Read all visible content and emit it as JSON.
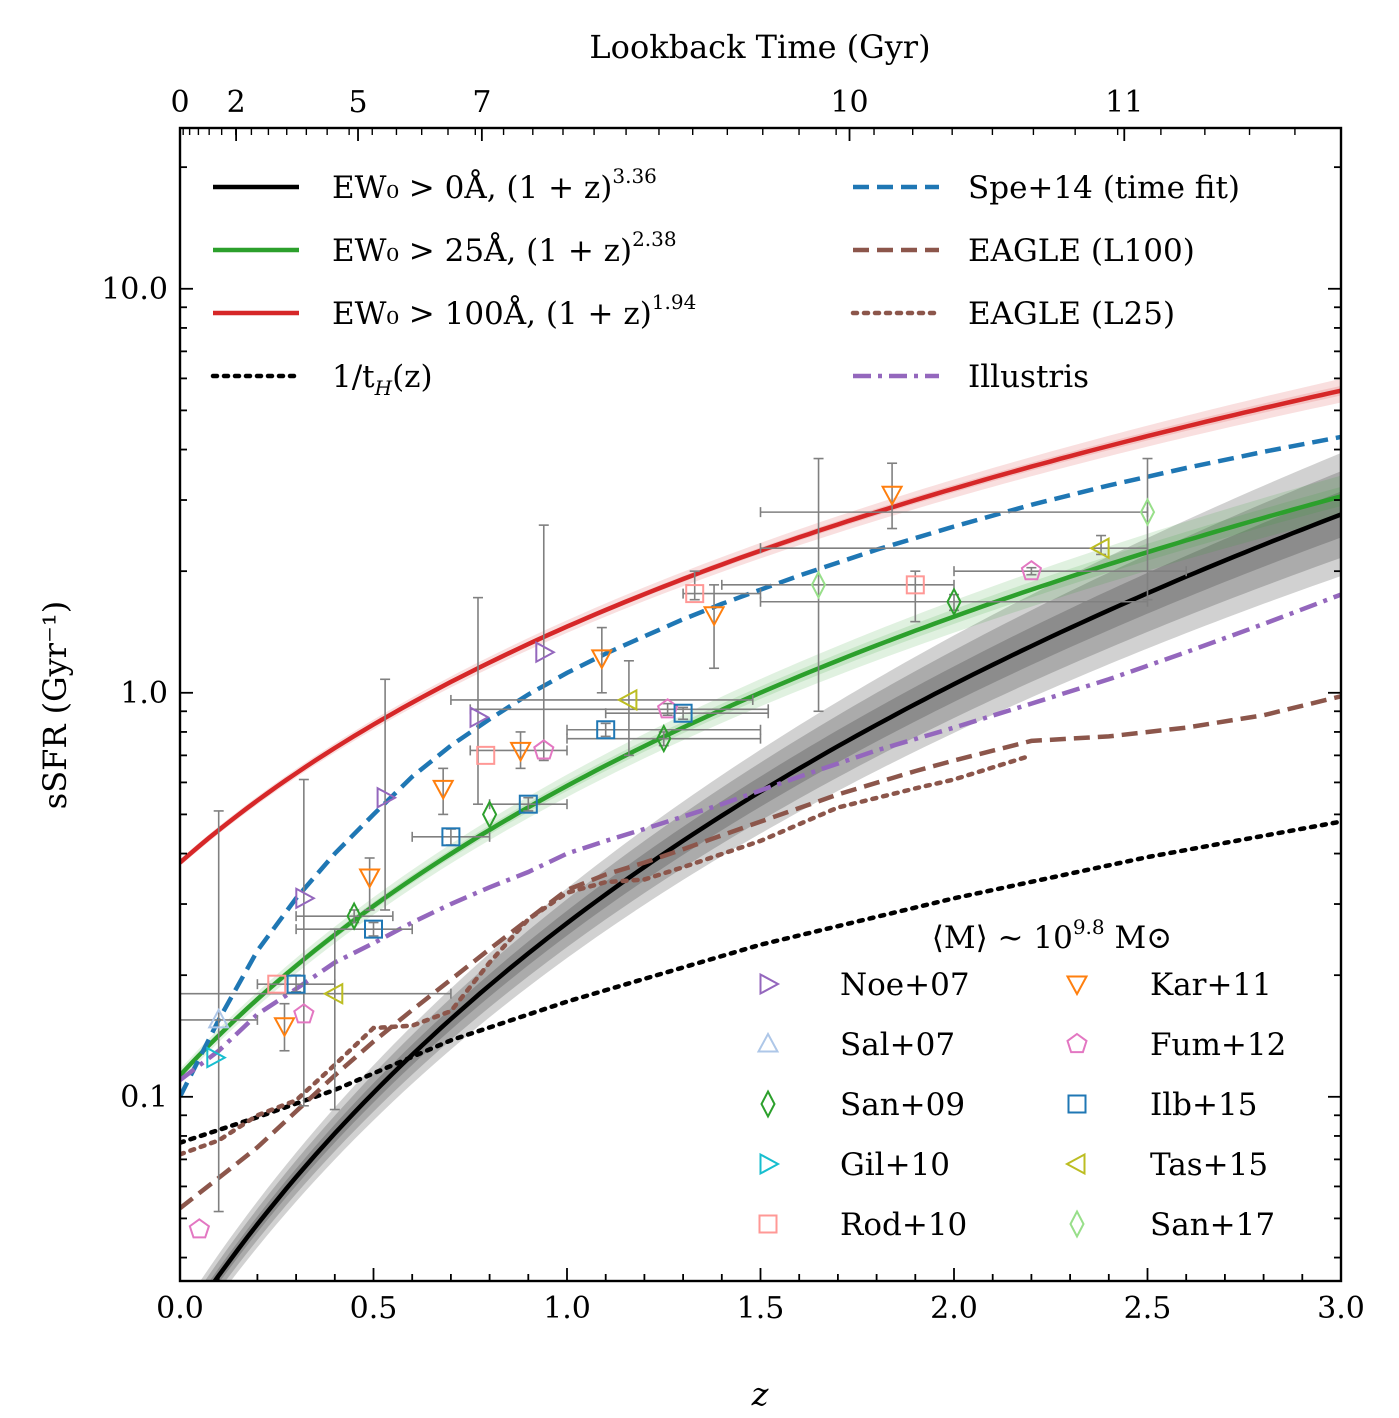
{
  "chart_data": {
    "type": "line",
    "xlabel": "z",
    "ylabel": "sSFR (Gyr⁻¹)",
    "top_axis_label": "Lookback Time (Gyr)",
    "top_ticks": [
      {
        "label": "0",
        "z": 0.0
      },
      {
        "label": "2",
        "z": 0.145
      },
      {
        "label": "5",
        "z": 0.46
      },
      {
        "label": "7",
        "z": 0.78
      },
      {
        "label": "10",
        "z": 1.73
      },
      {
        "label": "11",
        "z": 2.44
      }
    ],
    "xlim": [
      0,
      3.0
    ],
    "ylim": [
      0.035,
      25
    ],
    "yscale": "log",
    "x_ticks": [
      "0.0",
      "0.5",
      "1.0",
      "1.5",
      "2.0",
      "2.5",
      "3.0"
    ],
    "y_ticks": [
      {
        "label": "0.1",
        "value": 0.1
      },
      {
        "label": "1.0",
        "value": 1.0
      },
      {
        "label": "10.0",
        "value": 10.0
      }
    ],
    "annotation": "⟨M⟩ ~ 10",
    "annotation_exp": "9.8",
    "annotation_unit": " M⊙",
    "lines": [
      {
        "label": "EW₀ > 0Å, (1 + z)",
        "exp": "3.36",
        "color": "#000000",
        "style": "solid",
        "norm": 0.0262,
        "power": 3.36,
        "band": [
          0.1,
          0.2,
          0.3
        ]
      },
      {
        "label": "EW₀ > 25Å, (1 + z)",
        "exp": "2.38",
        "color": "#2ca02c",
        "style": "solid",
        "norm": 0.113,
        "power": 2.38,
        "band": [
          0.04,
          0.09
        ]
      },
      {
        "label": "EW₀ > 100Å, (1 + z)",
        "exp": "1.94",
        "color": "#d62728",
        "style": "solid",
        "norm": 0.38,
        "power": 1.94,
        "band": [
          0.02,
          0.05
        ]
      },
      {
        "label": "1/t",
        "sub": "H",
        "tail": "(z)",
        "color": "#000000",
        "style": "dotted",
        "x": [
          0,
          0.2,
          0.4,
          0.7,
          1.0,
          1.5,
          2.0,
          2.5,
          3.0
        ],
        "y": [
          0.077,
          0.089,
          0.104,
          0.138,
          0.172,
          0.238,
          0.31,
          0.392,
          0.48
        ]
      },
      {
        "label": "Spe+14 (time fit)",
        "color": "#1f77b4",
        "style": "dashed",
        "x": [
          0.0,
          0.1,
          0.2,
          0.3,
          0.4,
          0.5,
          0.6,
          0.7,
          0.8,
          0.9,
          1.0,
          1.1,
          1.2,
          1.3,
          1.4,
          1.5,
          1.6,
          1.8,
          2.0,
          2.2,
          2.4,
          2.6,
          2.8,
          3.0
        ],
        "y": [
          0.1,
          0.155,
          0.23,
          0.31,
          0.4,
          0.5,
          0.62,
          0.74,
          0.86,
          0.99,
          1.12,
          1.25,
          1.38,
          1.52,
          1.66,
          1.8,
          1.95,
          2.26,
          2.58,
          2.92,
          3.26,
          3.6,
          3.95,
          4.3
        ]
      },
      {
        "label": "EAGLE (L100)",
        "color": "#8c564b",
        "style": "dashed",
        "x": [
          0.0,
          0.1,
          0.2,
          0.3,
          0.4,
          0.5,
          0.6,
          0.7,
          0.8,
          0.9,
          1.0,
          1.1,
          1.2,
          1.3,
          1.5,
          1.7,
          1.9,
          2.0,
          2.2,
          2.4,
          2.6,
          2.8,
          3.0
        ],
        "y": [
          0.053,
          0.063,
          0.075,
          0.092,
          0.113,
          0.137,
          0.164,
          0.195,
          0.232,
          0.275,
          0.325,
          0.355,
          0.38,
          0.41,
          0.48,
          0.56,
          0.64,
          0.68,
          0.76,
          0.78,
          0.82,
          0.88,
          0.98
        ]
      },
      {
        "label": "EAGLE (L25)",
        "color": "#8c564b",
        "style": "dotted",
        "x": [
          0.0,
          0.1,
          0.2,
          0.3,
          0.4,
          0.5,
          0.6,
          0.7,
          0.8,
          0.9,
          1.0,
          1.1,
          1.2,
          1.3,
          1.5,
          1.7,
          1.9,
          2.0,
          2.2
        ],
        "y": [
          0.072,
          0.078,
          0.09,
          0.098,
          0.12,
          0.148,
          0.15,
          0.163,
          0.215,
          0.275,
          0.32,
          0.34,
          0.345,
          0.37,
          0.43,
          0.52,
          0.58,
          0.61,
          0.7
        ]
      },
      {
        "label": "Illustris",
        "color": "#9467bd",
        "style": "dashdot",
        "x": [
          0.0,
          0.1,
          0.2,
          0.3,
          0.4,
          0.5,
          0.6,
          0.7,
          0.8,
          0.9,
          1.0,
          1.1,
          1.2,
          1.4,
          1.6,
          1.8,
          2.0,
          2.2,
          2.4,
          2.6,
          2.8,
          3.0
        ],
        "y": [
          0.11,
          0.13,
          0.16,
          0.185,
          0.215,
          0.24,
          0.27,
          0.3,
          0.33,
          0.36,
          0.4,
          0.43,
          0.46,
          0.53,
          0.62,
          0.72,
          0.82,
          0.94,
          1.08,
          1.26,
          1.48,
          1.75
        ]
      }
    ],
    "observations": [
      {
        "label": "Noe+07",
        "marker": "tri-right",
        "color": "#9467bd",
        "points": [
          [
            0.32,
            0.31,
            0,
            0,
            0.33,
            0.33
          ],
          [
            0.53,
            0.55,
            0,
            0,
            0.57,
            0.57
          ],
          [
            0.77,
            0.87,
            0,
            0,
            0.9,
            0.9
          ],
          [
            0.94,
            1.26,
            0,
            0,
            1.3,
            1.3
          ]
        ]
      },
      {
        "label": "Sal+07",
        "marker": "tri-up",
        "color": "#aec7e8",
        "points": [
          [
            0.1,
            0.155,
            0,
            0,
            0,
            0
          ]
        ]
      },
      {
        "label": "San+09",
        "marker": "diamond",
        "color": "#2ca02c",
        "points": [
          [
            0.45,
            0.28,
            0,
            0,
            0,
            0
          ],
          [
            0.8,
            0.5,
            0,
            0,
            0,
            0
          ],
          [
            1.25,
            0.77,
            0,
            0,
            0,
            0
          ],
          [
            2.0,
            1.68,
            0,
            0,
            0,
            0
          ]
        ]
      },
      {
        "label": "Gil+10",
        "marker": "tri-right",
        "color": "#17becf",
        "points": [
          [
            0.09,
            0.125,
            0,
            0,
            0,
            0
          ]
        ]
      },
      {
        "label": "Rod+10",
        "marker": "square",
        "color": "#ff9896",
        "points": [
          [
            0.25,
            0.19,
            0,
            0,
            0,
            0
          ],
          [
            0.79,
            0.7,
            0,
            0,
            0,
            0
          ],
          [
            1.33,
            1.76,
            0,
            0,
            0,
            0
          ],
          [
            1.9,
            1.85,
            0,
            0,
            0,
            0
          ]
        ]
      },
      {
        "label": "Kar+11",
        "marker": "tri-down",
        "color": "#ff7f0e",
        "points": [
          [
            0.27,
            0.15,
            0,
            0,
            0,
            0
          ],
          [
            0.49,
            0.35,
            0,
            0,
            0,
            0
          ],
          [
            0.68,
            0.58,
            0,
            0,
            0,
            0
          ],
          [
            0.88,
            0.72,
            0,
            0,
            0,
            0
          ],
          [
            1.09,
            1.22,
            0,
            0,
            0,
            0
          ],
          [
            1.38,
            1.56,
            0,
            0,
            0,
            0
          ],
          [
            1.84,
            3.1,
            0,
            0,
            0,
            0
          ]
        ]
      },
      {
        "label": "Fum+12",
        "marker": "pentagon",
        "color": "#e377c2",
        "points": [
          [
            0.05,
            0.047,
            0,
            0,
            0,
            0
          ],
          [
            0.32,
            0.16,
            0,
            0,
            0,
            0
          ],
          [
            0.94,
            0.72,
            0,
            0,
            0,
            0
          ],
          [
            1.26,
            0.91,
            0,
            0,
            0,
            0
          ],
          [
            2.2,
            2.0,
            0,
            0,
            0,
            0
          ]
        ]
      },
      {
        "label": "Ilb+15",
        "marker": "square",
        "color": "#1f77b4",
        "points": [
          [
            0.3,
            0.19,
            0,
            0,
            0,
            0
          ],
          [
            0.5,
            0.26,
            0,
            0,
            0,
            0
          ],
          [
            0.7,
            0.44,
            0,
            0,
            0,
            0
          ],
          [
            0.9,
            0.53,
            0,
            0,
            0,
            0
          ],
          [
            1.1,
            0.81,
            0,
            0,
            0,
            0
          ],
          [
            1.3,
            0.89,
            0,
            0,
            0,
            0
          ]
        ]
      },
      {
        "label": "Tas+15",
        "marker": "tri-left",
        "color": "#bcbd22",
        "points": [
          [
            0.4,
            0.18,
            0,
            0,
            0,
            0
          ],
          [
            1.16,
            0.96,
            0,
            0,
            0,
            0
          ],
          [
            2.38,
            2.28,
            0,
            0,
            0,
            0
          ]
        ]
      },
      {
        "label": "San+17",
        "marker": "diamond",
        "color": "#98df8a",
        "points": [
          [
            1.65,
            1.85,
            0,
            0,
            0,
            0
          ],
          [
            2.5,
            2.8,
            0,
            0,
            0,
            0
          ]
        ]
      }
    ],
    "errorbars": [
      {
        "x": 0.1,
        "y": 0.155,
        "xlo": 0.0,
        "xhi": 0.2,
        "ylo": 0.052,
        "yhi": 0.51
      },
      {
        "x": 0.32,
        "y": 0.31,
        "xlo": 0.32,
        "xhi": 0.32,
        "ylo": 0.095,
        "yhi": 0.61
      },
      {
        "x": 0.53,
        "y": 0.55,
        "xlo": 0.53,
        "xhi": 0.53,
        "ylo": 0.29,
        "yhi": 1.08
      },
      {
        "x": 0.77,
        "y": 0.87,
        "xlo": 0.77,
        "xhi": 0.77,
        "ylo": 0.53,
        "yhi": 1.72
      },
      {
        "x": 0.94,
        "y": 1.26,
        "xlo": 0.94,
        "xhi": 0.94,
        "ylo": 0.68,
        "yhi": 2.6
      },
      {
        "x": 1.65,
        "y": 1.85,
        "xlo": 1.65,
        "xhi": 1.65,
        "ylo": 0.9,
        "yhi": 3.8
      },
      {
        "x": 2.5,
        "y": 2.8,
        "xlo": 2.5,
        "xhi": 2.5,
        "ylo": 1.7,
        "yhi": 3.8
      },
      {
        "x": 0.4,
        "y": 0.18,
        "xlo": 0.0,
        "xhi": 0.7,
        "ylo": 0.093,
        "yhi": 0.26
      },
      {
        "x": 0.3,
        "y": 0.19,
        "xlo": 0.2,
        "xhi": 0.4,
        "ylo": 0.182,
        "yhi": 0.2
      },
      {
        "x": 0.5,
        "y": 0.26,
        "xlo": 0.3,
        "xhi": 0.6,
        "ylo": 0.25,
        "yhi": 0.27
      },
      {
        "x": 0.7,
        "y": 0.44,
        "xlo": 0.6,
        "xhi": 0.8,
        "ylo": 0.42,
        "yhi": 0.46
      },
      {
        "x": 0.9,
        "y": 0.53,
        "xlo": 0.8,
        "xhi": 1.0,
        "ylo": 0.51,
        "yhi": 0.55
      },
      {
        "x": 1.1,
        "y": 0.81,
        "xlo": 1.0,
        "xhi": 1.5,
        "ylo": 0.78,
        "yhi": 0.84
      },
      {
        "x": 1.3,
        "y": 0.89,
        "xlo": 1.1,
        "xhi": 1.52,
        "ylo": 0.86,
        "yhi": 0.92
      },
      {
        "x": 0.88,
        "y": 0.72,
        "xlo": 0.75,
        "xhi": 1.0,
        "ylo": 0.65,
        "yhi": 0.8
      },
      {
        "x": 1.09,
        "y": 1.22,
        "xlo": 1.09,
        "xhi": 1.09,
        "ylo": 1.0,
        "yhi": 1.45
      },
      {
        "x": 1.38,
        "y": 1.56,
        "xlo": 1.38,
        "xhi": 1.38,
        "ylo": 1.15,
        "yhi": 1.85
      },
      {
        "x": 1.84,
        "y": 3.1,
        "xlo": 1.84,
        "xhi": 1.84,
        "ylo": 2.55,
        "yhi": 3.7
      },
      {
        "x": 0.68,
        "y": 0.58,
        "xlo": 0.68,
        "xhi": 0.68,
        "ylo": 0.5,
        "yhi": 0.65
      },
      {
        "x": 0.49,
        "y": 0.35,
        "xlo": 0.49,
        "xhi": 0.49,
        "ylo": 0.29,
        "yhi": 0.39
      },
      {
        "x": 0.27,
        "y": 0.15,
        "xlo": 0.27,
        "xhi": 0.27,
        "ylo": 0.13,
        "yhi": 0.17
      },
      {
        "x": 0.45,
        "y": 0.28,
        "xlo": 0.3,
        "xhi": 0.55,
        "ylo": 0.27,
        "yhi": 0.29
      },
      {
        "x": 1.16,
        "y": 0.96,
        "xlo": 0.7,
        "xhi": 1.48,
        "ylo": 0.7,
        "yhi": 1.2
      },
      {
        "x": 1.26,
        "y": 0.91,
        "xlo": 0.75,
        "xhi": 1.52,
        "ylo": 0.88,
        "yhi": 0.94
      },
      {
        "x": 1.25,
        "y": 0.77,
        "xlo": 1.0,
        "xhi": 1.5,
        "ylo": 0.74,
        "yhi": 0.8
      },
      {
        "x": 1.33,
        "y": 1.76,
        "xlo": 1.3,
        "xhi": 1.5,
        "ylo": 1.7,
        "yhi": 2.0
      },
      {
        "x": 1.9,
        "y": 1.85,
        "xlo": 1.4,
        "xhi": 2.0,
        "ylo": 1.5,
        "yhi": 2.0
      },
      {
        "x": 2.0,
        "y": 1.68,
        "xlo": 1.5,
        "xhi": 2.5,
        "ylo": 1.6,
        "yhi": 1.75
      },
      {
        "x": 2.2,
        "y": 2.0,
        "xlo": 2.0,
        "xhi": 2.6,
        "ylo": 1.96,
        "yhi": 2.04
      },
      {
        "x": 2.38,
        "y": 2.28,
        "xlo": 1.5,
        "xhi": 2.5,
        "ylo": 2.2,
        "yhi": 2.45
      },
      {
        "x": 2.5,
        "y": 2.8,
        "xlo": 1.5,
        "xhi": 2.5,
        "ylo": 2.8,
        "yhi": 2.8
      }
    ]
  }
}
